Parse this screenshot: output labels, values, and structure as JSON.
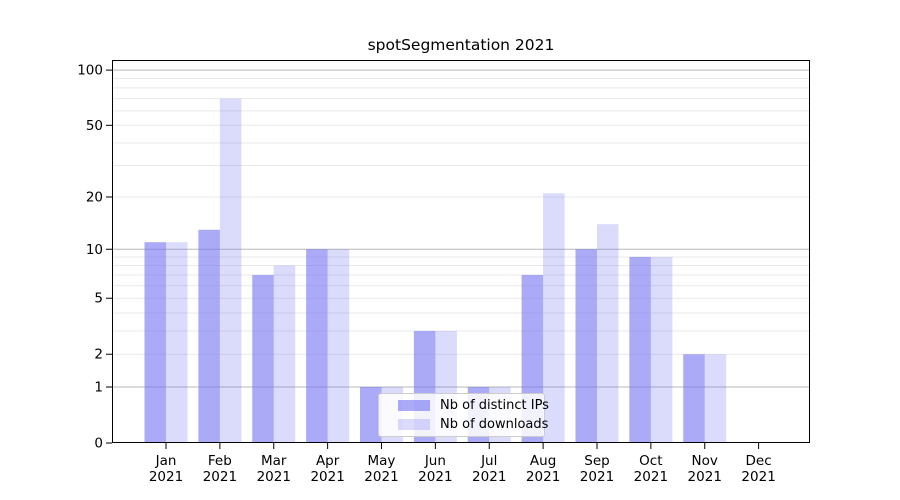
{
  "title": "spotSegmentation 2021",
  "chart_data": {
    "type": "bar",
    "title": "spotSegmentation 2021",
    "categories": [
      "Jan",
      "Feb",
      "Mar",
      "Apr",
      "May",
      "Jun",
      "Jul",
      "Aug",
      "Sep",
      "Oct",
      "Nov",
      "Dec"
    ],
    "category_year": "2021",
    "series": [
      {
        "name": "Nb of distinct IPs",
        "color": "rgba(113,113,242,0.6)",
        "values": [
          11,
          13,
          7,
          10,
          1,
          3,
          1,
          7,
          10,
          9,
          2,
          0
        ]
      },
      {
        "name": "Nb of downloads",
        "color": "rgba(113,113,242,0.25)",
        "values": [
          11,
          70,
          8,
          10,
          1,
          3,
          1,
          21,
          14,
          9,
          2,
          0
        ]
      }
    ],
    "xlabel": "",
    "ylabel": "",
    "yscale": "log1p",
    "yticks": [
      0,
      1,
      2,
      5,
      10,
      20,
      50,
      100
    ],
    "ylim": [
      0,
      114
    ],
    "grid": "horizontal major and minor",
    "legend_position": "lower center"
  },
  "colors": {
    "bar_base": "#7171f2",
    "major_grid": "#b8b8b8",
    "minor_grid": "#e9e9e9",
    "axis_spine": "#000000",
    "background": "#ffffff",
    "legend_border": "#cccccc"
  }
}
